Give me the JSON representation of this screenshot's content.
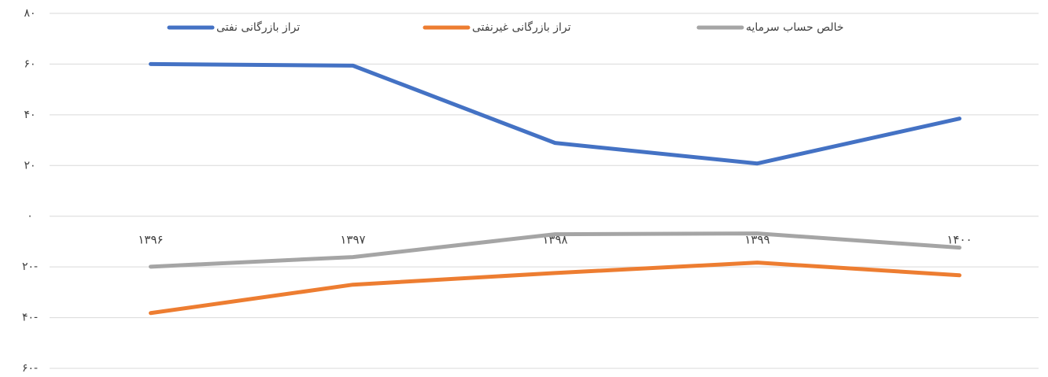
{
  "chart_data": {
    "type": "line",
    "categories": [
      "۱۳۹۶",
      "۱۳۹۷",
      "۱۳۹۸",
      "۱۳۹۹",
      "۱۴۰۰"
    ],
    "series": [
      {
        "name": "تراز بازرگانی نفتی",
        "color": "#4472c4",
        "values": [
          60,
          59.4,
          28.9,
          20.8,
          38.5
        ]
      },
      {
        "name": "تراز بازرگانی غیرنفتی",
        "color": "#ed7d31",
        "values": [
          -38.2,
          -27,
          -22.4,
          -18.3,
          -23.3
        ]
      },
      {
        "name": "خالص حساب سرمایه",
        "color": "#a5a5a5",
        "values": [
          -19.9,
          -16.1,
          -7.1,
          -6.8,
          -12.4
        ]
      }
    ],
    "ylim": [
      -60,
      80
    ],
    "yticks": [
      {
        "value": -60,
        "label": "۶۰-"
      },
      {
        "value": -40,
        "label": "۴۰-"
      },
      {
        "value": -20,
        "label": "۲۰-"
      },
      {
        "value": 0,
        "label": "۰"
      },
      {
        "value": 20,
        "label": "۲۰"
      },
      {
        "value": 40,
        "label": "۴۰"
      },
      {
        "value": 60,
        "label": "۶۰"
      },
      {
        "value": 80,
        "label": "۸۰"
      }
    ],
    "grid": true,
    "legend": "top"
  }
}
